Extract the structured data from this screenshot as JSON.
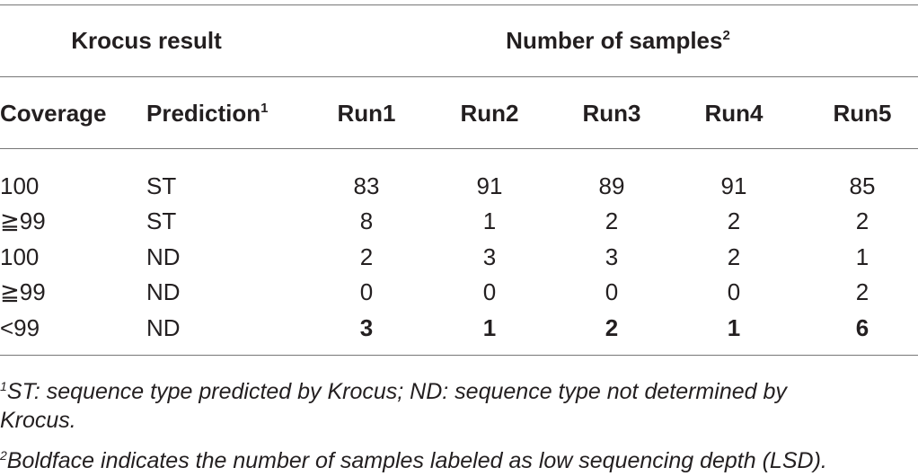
{
  "header": {
    "group_left": "Krocus result",
    "group_right": "Number of samples",
    "group_right_sup": "2"
  },
  "columns": [
    {
      "label": "Coverage"
    },
    {
      "label": "Prediction",
      "sup": "1"
    },
    {
      "label": "Run1"
    },
    {
      "label": "Run2"
    },
    {
      "label": "Run3"
    },
    {
      "label": "Run4"
    },
    {
      "label": "Run5"
    }
  ],
  "rows": [
    {
      "cells": [
        "100",
        "ST",
        "83",
        "91",
        "89",
        "91",
        "85"
      ],
      "bold": false
    },
    {
      "cells": [
        "≧99",
        "ST",
        "8",
        "1",
        "2",
        "2",
        "2"
      ],
      "bold": false
    },
    {
      "cells": [
        "100",
        "ND",
        "2",
        "3",
        "3",
        "2",
        "1"
      ],
      "bold": false
    },
    {
      "cells": [
        "≧99",
        "ND",
        "0",
        "0",
        "0",
        "0",
        "2"
      ],
      "bold": false
    },
    {
      "cells": [
        "<99",
        "ND",
        "3",
        "1",
        "2",
        "1",
        "6"
      ],
      "bold": true
    }
  ],
  "footnotes": [
    {
      "mark": "1",
      "text": "ST: sequence type predicted by Krocus; ND: sequence type not determined by Krocus."
    },
    {
      "mark": "2",
      "text": "Boldface indicates the number of samples labeled as low sequencing depth (LSD)."
    }
  ]
}
